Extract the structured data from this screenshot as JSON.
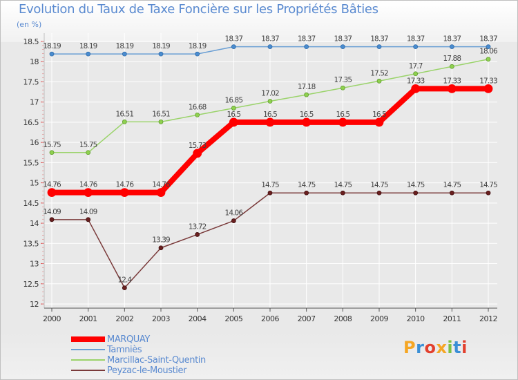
{
  "header": {
    "title": "Evolution du Taux de Taxe Foncière sur les Propriétés Bâties",
    "unit": "(en %)"
  },
  "logo": {
    "text": "Proxiti",
    "letters": [
      "P",
      "r",
      "o",
      "x",
      "i",
      "t",
      "i"
    ],
    "colors": [
      "#f5a623",
      "#3a8fd6",
      "#e2402e",
      "#f5a623",
      "#7bc143",
      "#3a8fd6",
      "#e2402e"
    ]
  },
  "chart_data": {
    "type": "line",
    "title": "Evolution du Taux de Taxe Foncière sur les Propriétés Bâties",
    "ylabel": "(en %)",
    "xlabel": "",
    "ylim": [
      12,
      18.5
    ],
    "yticks": [
      "12",
      "12.5",
      "13",
      "13.5",
      "14",
      "14.5",
      "15",
      "15.5",
      "16",
      "16.5",
      "17",
      "17.5",
      "18",
      "18.5"
    ],
    "categories": [
      "2000",
      "2001",
      "2002",
      "2003",
      "2004",
      "2005",
      "2006",
      "2007",
      "2008",
      "2009",
      "2010",
      "2011",
      "2012"
    ],
    "series": [
      {
        "name": "MARQUAY",
        "color": "#ff0000",
        "values": [
          14.76,
          14.76,
          14.76,
          14.76,
          15.73,
          16.5,
          16.5,
          16.5,
          16.5,
          16.5,
          17.33,
          17.33,
          17.33
        ],
        "labels": [
          "14.76",
          "14.76",
          "14.76",
          "14.76",
          "15.73",
          "16.5",
          "16.5",
          "16.5",
          "16.5",
          "16.5",
          "17.33",
          "17.33",
          "17.33"
        ]
      },
      {
        "name": "Tamniès",
        "color": "#6a9fd4",
        "values": [
          18.19,
          18.19,
          18.19,
          18.19,
          18.19,
          18.37,
          18.37,
          18.37,
          18.37,
          18.37,
          18.37,
          18.37,
          18.37
        ],
        "labels": [
          "18.19",
          "18.19",
          "18.19",
          "18.19",
          "18.19",
          "18.37",
          "18.37",
          "18.37",
          "18.37",
          "18.37",
          "18.37",
          "18.37",
          "18.37"
        ]
      },
      {
        "name": "Marcillac-Saint-Quentin",
        "color": "#9ad36a",
        "values": [
          15.75,
          15.75,
          16.51,
          16.51,
          16.68,
          16.85,
          17.02,
          17.18,
          17.35,
          17.52,
          17.7,
          17.88,
          18.06
        ],
        "labels": [
          "15.75",
          "15.75",
          "16.51",
          "16.51",
          "16.68",
          "16.85",
          "17.02",
          "17.18",
          "17.35",
          "17.52",
          "17.7",
          "17.88",
          "18.06"
        ]
      },
      {
        "name": "Peyzac-le-Moustier",
        "color": "#7a3a3a",
        "values": [
          14.09,
          14.09,
          12.4,
          13.39,
          13.72,
          14.06,
          14.75,
          14.75,
          14.75,
          14.75,
          14.75,
          14.75,
          14.75
        ],
        "labels": [
          "14.09",
          "14.09",
          "12.4",
          "13.39",
          "13.72",
          "14.06",
          "14.75",
          "14.75",
          "14.75",
          "14.75",
          "14.75",
          "14.75",
          "14.75"
        ]
      }
    ]
  }
}
